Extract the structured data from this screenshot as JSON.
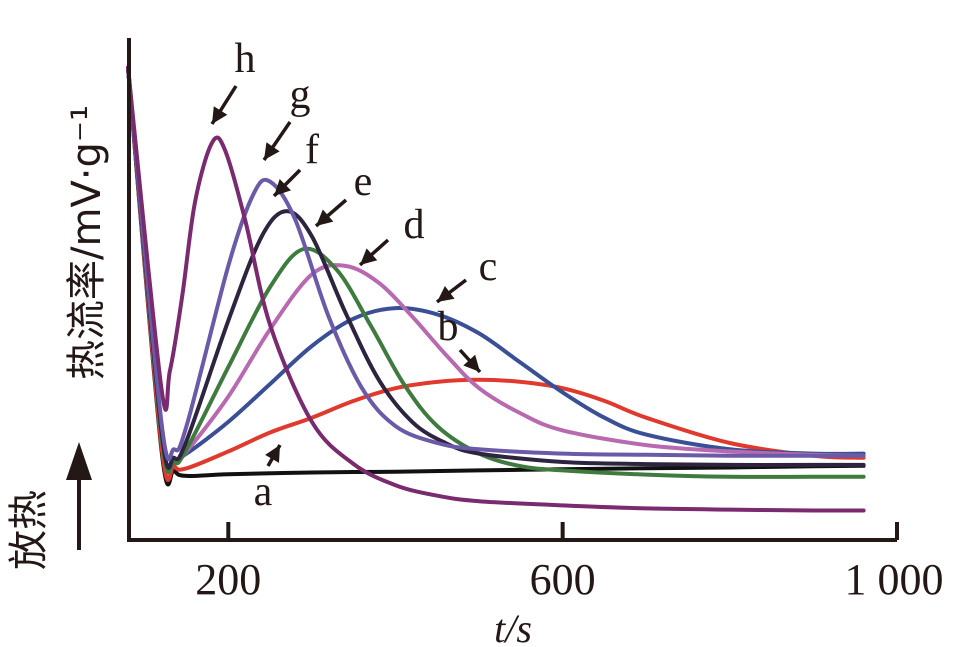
{
  "chart_data": {
    "type": "line",
    "xlabel": "t/s",
    "ylabel": "热流率/mV·g⁻¹",
    "direction_label": "放热",
    "xlim": [
      80,
      1000
    ],
    "x_ticks": [
      200,
      600,
      1000
    ],
    "x_tick_labels": [
      "200",
      "600",
      "1 000"
    ],
    "grid": false,
    "series": [
      {
        "name": "a",
        "color": "#111111",
        "x": [
          80,
          120,
          135,
          150,
          200,
          300,
          400,
          500,
          600,
          700,
          800,
          900,
          960
        ],
        "y": [
          10,
          0.95,
          0.45,
          0.32,
          0.36,
          0.4,
          0.42,
          0.45,
          0.48,
          0.5,
          0.52,
          0.55,
          0.56
        ]
      },
      {
        "name": "b",
        "color": "#e03a2e",
        "x": [
          80,
          120,
          135,
          150,
          200,
          250,
          300,
          350,
          400,
          450,
          500,
          550,
          600,
          650,
          700,
          800,
          900,
          960
        ],
        "y": [
          10,
          1.05,
          0.55,
          0.5,
          0.9,
          1.35,
          1.7,
          2.1,
          2.4,
          2.55,
          2.6,
          2.55,
          2.4,
          2.1,
          1.7,
          1.1,
          0.8,
          0.75
        ]
      },
      {
        "name": "c",
        "color": "#3a4f95",
        "x": [
          80,
          120,
          135,
          150,
          200,
          250,
          300,
          350,
          400,
          450,
          500,
          550,
          600,
          650,
          700,
          800,
          900,
          960
        ],
        "y": [
          10,
          1.3,
          0.75,
          0.85,
          1.6,
          2.5,
          3.4,
          4.05,
          4.3,
          4.15,
          3.7,
          3.0,
          2.3,
          1.7,
          1.3,
          0.95,
          0.85,
          0.85
        ]
      },
      {
        "name": "d",
        "color": "#b86ab0",
        "x": [
          80,
          120,
          135,
          150,
          200,
          250,
          300,
          340,
          380,
          420,
          460,
          500,
          550,
          600,
          700,
          800,
          900,
          960
        ],
        "y": [
          10,
          1.3,
          0.65,
          0.9,
          2.2,
          3.8,
          5.1,
          5.3,
          4.9,
          4.1,
          3.2,
          2.4,
          1.8,
          1.4,
          1.05,
          0.9,
          0.82,
          0.8
        ]
      },
      {
        "name": "e",
        "color": "#3f7a3f",
        "x": [
          80,
          120,
          135,
          150,
          200,
          250,
          290,
          330,
          370,
          410,
          450,
          500,
          550,
          600,
          700,
          800,
          900,
          960
        ],
        "y": [
          10,
          1.3,
          0.65,
          0.95,
          2.9,
          4.8,
          5.7,
          5.2,
          3.9,
          2.5,
          1.5,
          0.85,
          0.55,
          0.45,
          0.35,
          0.3,
          0.3,
          0.3
        ]
      },
      {
        "name": "f",
        "color": "#2e2440",
        "x": [
          80,
          120,
          135,
          150,
          200,
          240,
          270,
          300,
          340,
          380,
          420,
          460,
          500,
          600,
          700,
          800,
          900,
          960
        ],
        "y": [
          10,
          1.4,
          0.75,
          1.15,
          4.0,
          6.0,
          6.6,
          6.0,
          4.2,
          2.6,
          1.6,
          1.1,
          0.85,
          0.65,
          0.6,
          0.58,
          0.58,
          0.58
        ]
      },
      {
        "name": "g",
        "color": "#6b5aa8",
        "x": [
          80,
          120,
          135,
          150,
          200,
          230,
          250,
          280,
          320,
          360,
          400,
          450,
          500,
          600,
          700,
          800,
          900,
          960
        ],
        "y": [
          10,
          1.6,
          0.95,
          1.5,
          5.3,
          7.0,
          7.3,
          6.4,
          4.1,
          2.4,
          1.5,
          1.1,
          0.95,
          0.85,
          0.82,
          0.8,
          0.8,
          0.8
        ]
      },
      {
        "name": "h",
        "color": "#7a2a6e",
        "x": [
          80,
          120,
          130,
          145,
          160,
          180,
          195,
          220,
          250,
          300,
          350,
          400,
          450,
          500,
          600,
          700,
          800,
          900,
          960
        ],
        "y": [
          10,
          2.4,
          2.8,
          4.6,
          6.8,
          8.2,
          8.1,
          6.4,
          3.9,
          1.6,
          0.6,
          0.1,
          -0.15,
          -0.28,
          -0.38,
          -0.45,
          -0.48,
          -0.5,
          -0.5
        ]
      }
    ]
  }
}
